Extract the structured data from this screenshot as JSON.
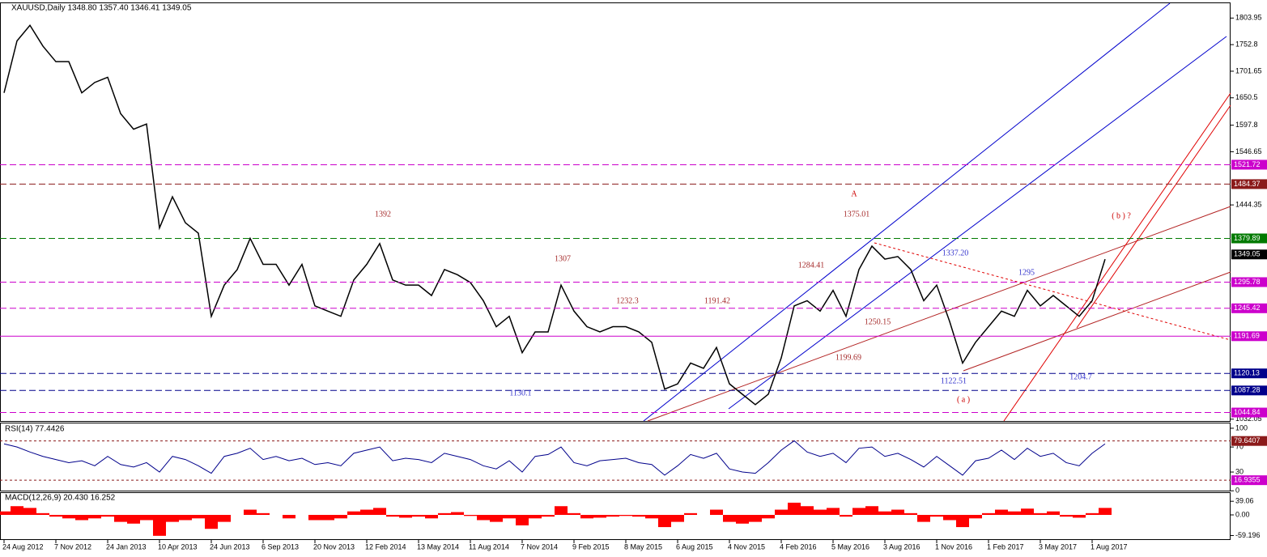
{
  "chart_data": [
    {
      "type": "line",
      "title": "XAUUSD,Daily  1348.80 1357.40 1346.41 1349.05",
      "categories": [
        "24 Aug 2012",
        null,
        null,
        null,
        "7 Nov 2012",
        null,
        null,
        null,
        "24 Jan 2013",
        null,
        null,
        null,
        "10 Apr 2013",
        null,
        null,
        null,
        "24 Jun 2013",
        null,
        null,
        null,
        "6 Sep 2013",
        null,
        null,
        null,
        "20 Nov 2013",
        null,
        null,
        null,
        "12 Feb 2014",
        null,
        null,
        null,
        "13 May 2014",
        null,
        null,
        null,
        "11 Aug 2014",
        null,
        null,
        null,
        "7 Nov 2014",
        null,
        null,
        null,
        "9 Feb 2015",
        null,
        null,
        null,
        "8 May 2015",
        null,
        null,
        null,
        "6 Aug 2015",
        null,
        null,
        null,
        "4 Nov 2015",
        null,
        null,
        null,
        "4 Feb 2016",
        null,
        null,
        null,
        "5 May 2016",
        null,
        null,
        null,
        "3 Aug 2016",
        null,
        null,
        null,
        "1 Nov 2016",
        null,
        null,
        null,
        "1 Feb 2017",
        null,
        null,
        null,
        "3 May 2017",
        null,
        null,
        null,
        "1 Aug 2017",
        null
      ],
      "series": [
        {
          "color": "#000000",
          "values": [
            1660,
            1760,
            1790,
            1750,
            1720,
            1720,
            1660,
            1680,
            1690,
            1620,
            1590,
            1600,
            1400,
            1460,
            1410,
            1390,
            1230,
            1290,
            1320,
            1380,
            1330,
            1330,
            1290,
            1330,
            1250,
            1240,
            1230,
            1300,
            1330,
            1370,
            1300,
            1290,
            1290,
            1270,
            1320,
            1310,
            1295,
            1260,
            1210,
            1230,
            1160,
            1200,
            1200,
            1290,
            1240,
            1210,
            1200,
            1210,
            1210,
            1200,
            1180,
            1090,
            1100,
            1140,
            1130,
            1170,
            1100,
            1080,
            1060,
            1080,
            1150,
            1250,
            1260,
            1240,
            1280,
            1230,
            1320,
            1365,
            1340,
            1345,
            1320,
            1260,
            1290,
            1220,
            1140,
            1180,
            1210,
            1240,
            1230,
            1280,
            1250,
            1270,
            1250,
            1230,
            1260,
            1340
          ]
        }
      ],
      "ylim": [
        1027,
        1834
      ],
      "yticks": [
        1803.95,
        1752.8,
        1701.65,
        1650.5,
        1597.8,
        1546.65,
        1444.35,
        1032.05
      ],
      "levels": [
        {
          "value": 1521.72,
          "color": "#cc00cc"
        },
        {
          "value": 1484.37,
          "color": "#8b1a1a"
        },
        {
          "value": 1379.89,
          "color": "#007a00"
        },
        {
          "value": 1349.05,
          "color": "#000000"
        },
        {
          "value": 1295.78,
          "color": "#cc00cc"
        },
        {
          "value": 1245.42,
          "color": "#cc00cc"
        },
        {
          "value": 1191.69,
          "color": "#cc00cc"
        },
        {
          "value": 1120.13,
          "color": "#00008b"
        },
        {
          "value": 1087.28,
          "color": "#00008b"
        },
        {
          "value": 1044.84,
          "color": "#cc00cc"
        }
      ],
      "annotations": [
        "A",
        "1392",
        "1375.01",
        "( b ) ?",
        "1307",
        "1284.41",
        "1337.20",
        "1295",
        "1232.3",
        "1191.42",
        "1250.15",
        "1199.69",
        "1204.7",
        "1122.51",
        "1130.1",
        "( a )"
      ]
    },
    {
      "type": "line",
      "title": "RSI(14) 77.4426",
      "color": "#00008b",
      "values": [
        75,
        70,
        62,
        55,
        50,
        45,
        48,
        40,
        55,
        42,
        38,
        45,
        30,
        55,
        50,
        40,
        28,
        55,
        60,
        68,
        50,
        55,
        48,
        52,
        42,
        45,
        40,
        60,
        65,
        70,
        48,
        52,
        50,
        45,
        60,
        55,
        50,
        40,
        35,
        48,
        30,
        55,
        58,
        70,
        45,
        40,
        48,
        50,
        52,
        45,
        42,
        25,
        40,
        58,
        52,
        60,
        35,
        30,
        28,
        45,
        65,
        80,
        62,
        55,
        60,
        45,
        68,
        70,
        55,
        60,
        50,
        38,
        55,
        40,
        25,
        48,
        52,
        65,
        50,
        68,
        55,
        60,
        45,
        40,
        60,
        75
      ],
      "ylim": [
        -1,
        109
      ],
      "yticks": [
        0,
        30,
        70,
        100
      ],
      "levels": [
        79.6407,
        16.9355
      ]
    },
    {
      "type": "bar",
      "title": "MACD(12,26,9) 20.430 16.252",
      "color": "#ff0000",
      "values": [
        10,
        25,
        20,
        5,
        -5,
        -10,
        -15,
        -10,
        -5,
        -20,
        -25,
        -15,
        -60,
        -20,
        -15,
        -10,
        -40,
        -20,
        0,
        15,
        5,
        0,
        -10,
        0,
        -15,
        -15,
        -10,
        10,
        15,
        20,
        -5,
        -8,
        -5,
        -10,
        5,
        8,
        -3,
        -15,
        -20,
        -10,
        -30,
        -10,
        -5,
        25,
        5,
        -10,
        -8,
        -5,
        -3,
        -5,
        -10,
        -35,
        -20,
        5,
        0,
        15,
        -20,
        -25,
        -20,
        -10,
        15,
        35,
        25,
        15,
        20,
        -5,
        20,
        25,
        10,
        15,
        5,
        -20,
        -5,
        -15,
        -35,
        -10,
        5,
        15,
        10,
        18,
        5,
        10,
        -5,
        -8,
        5,
        20
      ],
      "ylim": [
        -72,
        65
      ],
      "yticks": [
        39.06,
        {
          "value": 0,
          "label": "0.00"
        },
        -59.196
      ]
    }
  ]
}
